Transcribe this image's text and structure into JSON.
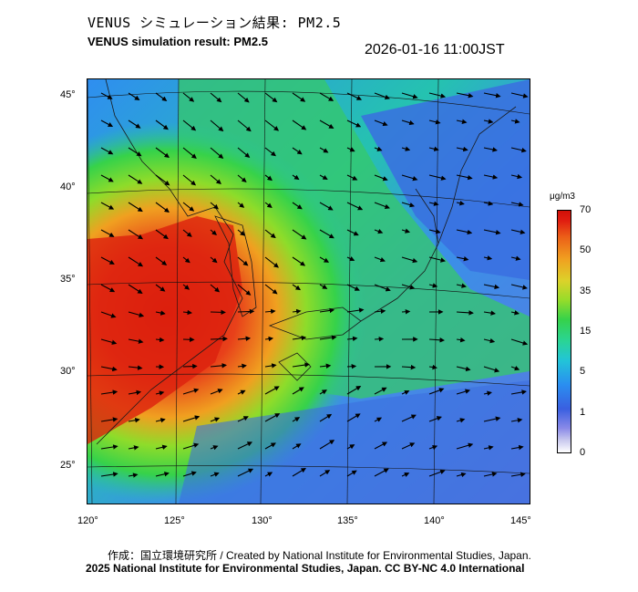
{
  "title_jp": "VENUS シミュレーション結果: PM2.5",
  "title_en": "VENUS simulation result: PM2.5",
  "timestamp": "2026-01-16 11:00JST",
  "lat_labels": [
    "45°",
    "40°",
    "35°",
    "30°",
    "25°"
  ],
  "lon_labels": [
    "120°",
    "125°",
    "130°",
    "135°",
    "140°",
    "145°"
  ],
  "colorbar": {
    "unit": "μg/m3",
    "ticks": [
      "70",
      "50",
      "35",
      "15",
      "5",
      "1",
      "0"
    ]
  },
  "credit_line_1": "作成：国立環境研究所 / Created by National Institute for Environmental Studies, Japan.",
  "credit_line_2": "2025 National Institute for Environmental Studies, Japan. CC BY-NC 4.0 International",
  "colors": {
    "high": "#e01c10",
    "mid": "#36d24a",
    "low": "#3a5fe0",
    "frame": "#000000"
  }
}
